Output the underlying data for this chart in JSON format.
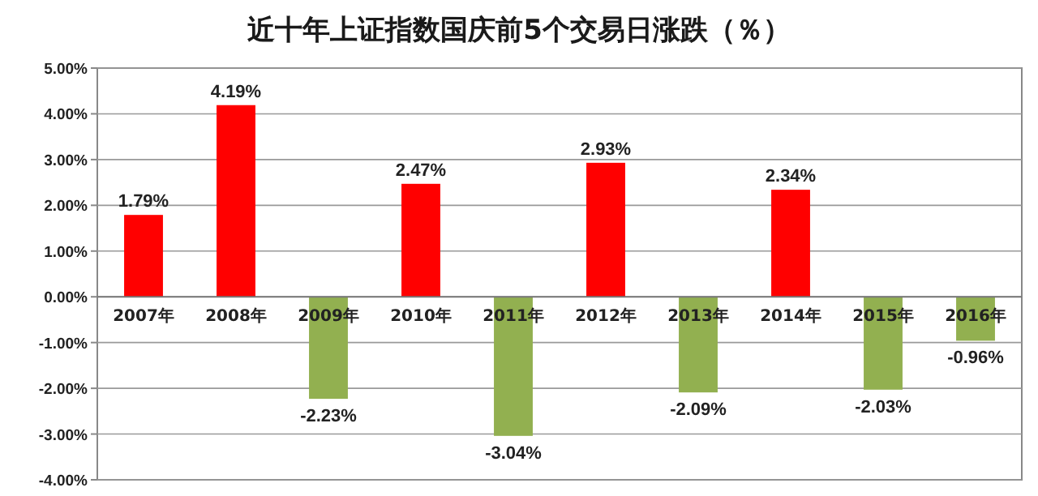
{
  "chart_data": {
    "type": "bar",
    "title": "近十年上证指数国庆前5个交易日涨跌（％）",
    "categories": [
      "2007年",
      "2008年",
      "2009年",
      "2010年",
      "2011年",
      "2012年",
      "2013年",
      "2014年",
      "2015年",
      "2016年"
    ],
    "values": [
      1.79,
      4.19,
      -2.23,
      2.47,
      -3.04,
      2.93,
      -2.09,
      2.34,
      -2.03,
      -0.96
    ],
    "colors": [
      "#ff0000",
      "#ff0000",
      "#92b050",
      "#ff0000",
      "#92b050",
      "#ff0000",
      "#92b050",
      "#ff0000",
      "#92b050",
      "#92b050"
    ],
    "value_labels": [
      "1.79%",
      "4.19%",
      "-2.23%",
      "2.47%",
      "-3.04%",
      "2.93%",
      "-2.09%",
      "2.34%",
      "-2.03%",
      "-0.96%"
    ],
    "ylim": [
      -4,
      5
    ],
    "yticks": [
      {
        "value": -4,
        "label": "-4.00%"
      },
      {
        "value": -3,
        "label": "-3.00%"
      },
      {
        "value": -2,
        "label": "-2.00%"
      },
      {
        "value": -1,
        "label": "-1.00%"
      },
      {
        "value": 0,
        "label": "0.00%"
      },
      {
        "value": 1,
        "label": "1.00%"
      },
      {
        "value": 2,
        "label": "2.00%"
      },
      {
        "value": 3,
        "label": "3.00%"
      },
      {
        "value": 4,
        "label": "4.00%"
      },
      {
        "value": 5,
        "label": "5.00%"
      }
    ],
    "grid": "y"
  }
}
